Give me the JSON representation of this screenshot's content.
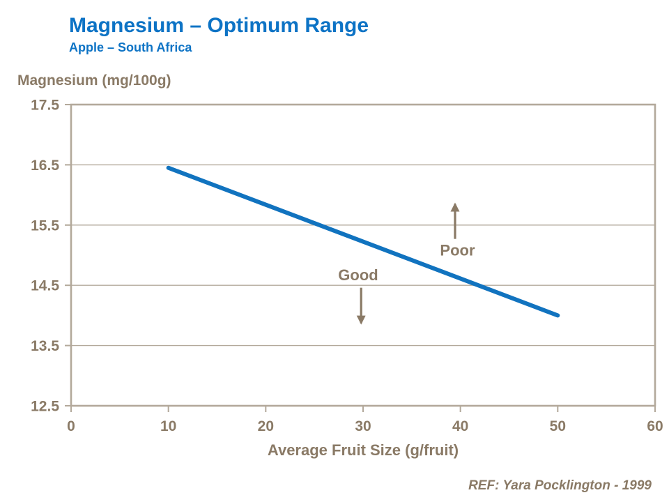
{
  "slide": {
    "title": "Magnesium – Optimum Range",
    "subtitle": "Apple – South Africa",
    "reference": "REF: Yara Pocklington - 1999"
  },
  "colors": {
    "heading_blue": "#0d73c5",
    "line_blue": "#1173bf",
    "axis_text_brown": "#8a7a66",
    "grid_tan": "#b3a99b"
  },
  "chart_data": {
    "type": "line",
    "title": "",
    "ylabel": "Magnesium (mg/100g)",
    "xlabel": "Average Fruit Size (g/fruit)",
    "xlim": [
      0,
      60
    ],
    "ylim": [
      12.5,
      17.5
    ],
    "x_ticks": [
      0,
      10,
      20,
      30,
      40,
      50,
      60
    ],
    "y_ticks": [
      12.5,
      13.5,
      14.5,
      15.5,
      16.5,
      17.5
    ],
    "grid": "horizontal",
    "legend": "none",
    "series": [
      {
        "name": "optimum",
        "x": [
          10,
          50
        ],
        "y": [
          16.45,
          14.0
        ]
      }
    ],
    "annotations": [
      {
        "label": "Good",
        "label_x": 29.5,
        "label_y": 14.67,
        "arrow_x": 29.8,
        "arrow_start_y": 14.46,
        "arrow_end_y": 13.87,
        "direction": "down"
      },
      {
        "label": "Poor",
        "label_x": 39.7,
        "label_y": 15.08,
        "arrow_x": 39.45,
        "arrow_start_y": 15.27,
        "arrow_end_y": 15.85,
        "direction": "up"
      }
    ]
  }
}
